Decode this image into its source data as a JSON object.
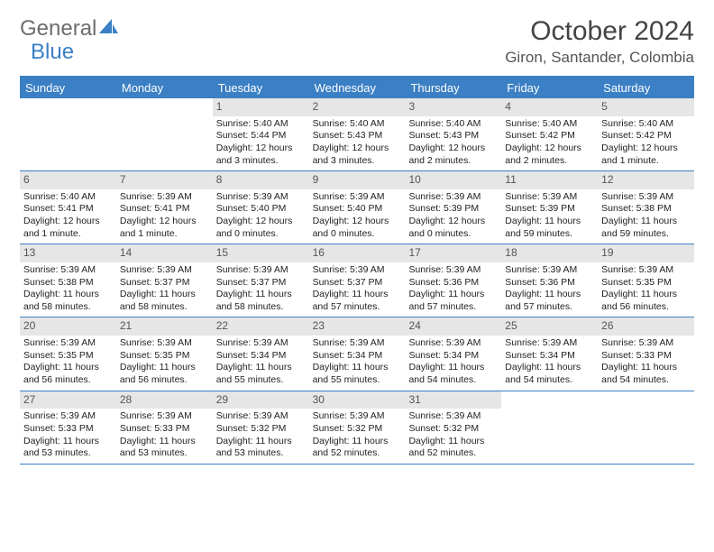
{
  "logo": {
    "part1": "General",
    "part2": "Blue"
  },
  "title": "October 2024",
  "location": "Giron, Santander, Colombia",
  "colors": {
    "accent": "#3b7fc4",
    "header_bg": "#3b7fc4",
    "header_fg": "#ffffff",
    "daynum_bg": "#e6e6e6",
    "text": "#222222",
    "page_bg": "#ffffff"
  },
  "weekdays": [
    "Sunday",
    "Monday",
    "Tuesday",
    "Wednesday",
    "Thursday",
    "Friday",
    "Saturday"
  ],
  "first_weekday_index": 2,
  "days": [
    {
      "n": 1,
      "sunrise": "5:40 AM",
      "sunset": "5:44 PM",
      "daylight": "12 hours and 3 minutes."
    },
    {
      "n": 2,
      "sunrise": "5:40 AM",
      "sunset": "5:43 PM",
      "daylight": "12 hours and 3 minutes."
    },
    {
      "n": 3,
      "sunrise": "5:40 AM",
      "sunset": "5:43 PM",
      "daylight": "12 hours and 2 minutes."
    },
    {
      "n": 4,
      "sunrise": "5:40 AM",
      "sunset": "5:42 PM",
      "daylight": "12 hours and 2 minutes."
    },
    {
      "n": 5,
      "sunrise": "5:40 AM",
      "sunset": "5:42 PM",
      "daylight": "12 hours and 1 minute."
    },
    {
      "n": 6,
      "sunrise": "5:40 AM",
      "sunset": "5:41 PM",
      "daylight": "12 hours and 1 minute."
    },
    {
      "n": 7,
      "sunrise": "5:39 AM",
      "sunset": "5:41 PM",
      "daylight": "12 hours and 1 minute."
    },
    {
      "n": 8,
      "sunrise": "5:39 AM",
      "sunset": "5:40 PM",
      "daylight": "12 hours and 0 minutes."
    },
    {
      "n": 9,
      "sunrise": "5:39 AM",
      "sunset": "5:40 PM",
      "daylight": "12 hours and 0 minutes."
    },
    {
      "n": 10,
      "sunrise": "5:39 AM",
      "sunset": "5:39 PM",
      "daylight": "12 hours and 0 minutes."
    },
    {
      "n": 11,
      "sunrise": "5:39 AM",
      "sunset": "5:39 PM",
      "daylight": "11 hours and 59 minutes."
    },
    {
      "n": 12,
      "sunrise": "5:39 AM",
      "sunset": "5:38 PM",
      "daylight": "11 hours and 59 minutes."
    },
    {
      "n": 13,
      "sunrise": "5:39 AM",
      "sunset": "5:38 PM",
      "daylight": "11 hours and 58 minutes."
    },
    {
      "n": 14,
      "sunrise": "5:39 AM",
      "sunset": "5:37 PM",
      "daylight": "11 hours and 58 minutes."
    },
    {
      "n": 15,
      "sunrise": "5:39 AM",
      "sunset": "5:37 PM",
      "daylight": "11 hours and 58 minutes."
    },
    {
      "n": 16,
      "sunrise": "5:39 AM",
      "sunset": "5:37 PM",
      "daylight": "11 hours and 57 minutes."
    },
    {
      "n": 17,
      "sunrise": "5:39 AM",
      "sunset": "5:36 PM",
      "daylight": "11 hours and 57 minutes."
    },
    {
      "n": 18,
      "sunrise": "5:39 AM",
      "sunset": "5:36 PM",
      "daylight": "11 hours and 57 minutes."
    },
    {
      "n": 19,
      "sunrise": "5:39 AM",
      "sunset": "5:35 PM",
      "daylight": "11 hours and 56 minutes."
    },
    {
      "n": 20,
      "sunrise": "5:39 AM",
      "sunset": "5:35 PM",
      "daylight": "11 hours and 56 minutes."
    },
    {
      "n": 21,
      "sunrise": "5:39 AM",
      "sunset": "5:35 PM",
      "daylight": "11 hours and 56 minutes."
    },
    {
      "n": 22,
      "sunrise": "5:39 AM",
      "sunset": "5:34 PM",
      "daylight": "11 hours and 55 minutes."
    },
    {
      "n": 23,
      "sunrise": "5:39 AM",
      "sunset": "5:34 PM",
      "daylight": "11 hours and 55 minutes."
    },
    {
      "n": 24,
      "sunrise": "5:39 AM",
      "sunset": "5:34 PM",
      "daylight": "11 hours and 54 minutes."
    },
    {
      "n": 25,
      "sunrise": "5:39 AM",
      "sunset": "5:34 PM",
      "daylight": "11 hours and 54 minutes."
    },
    {
      "n": 26,
      "sunrise": "5:39 AM",
      "sunset": "5:33 PM",
      "daylight": "11 hours and 54 minutes."
    },
    {
      "n": 27,
      "sunrise": "5:39 AM",
      "sunset": "5:33 PM",
      "daylight": "11 hours and 53 minutes."
    },
    {
      "n": 28,
      "sunrise": "5:39 AM",
      "sunset": "5:33 PM",
      "daylight": "11 hours and 53 minutes."
    },
    {
      "n": 29,
      "sunrise": "5:39 AM",
      "sunset": "5:32 PM",
      "daylight": "11 hours and 53 minutes."
    },
    {
      "n": 30,
      "sunrise": "5:39 AM",
      "sunset": "5:32 PM",
      "daylight": "11 hours and 52 minutes."
    },
    {
      "n": 31,
      "sunrise": "5:39 AM",
      "sunset": "5:32 PM",
      "daylight": "11 hours and 52 minutes."
    }
  ],
  "labels": {
    "sunrise": "Sunrise:",
    "sunset": "Sunset:",
    "daylight": "Daylight:"
  }
}
